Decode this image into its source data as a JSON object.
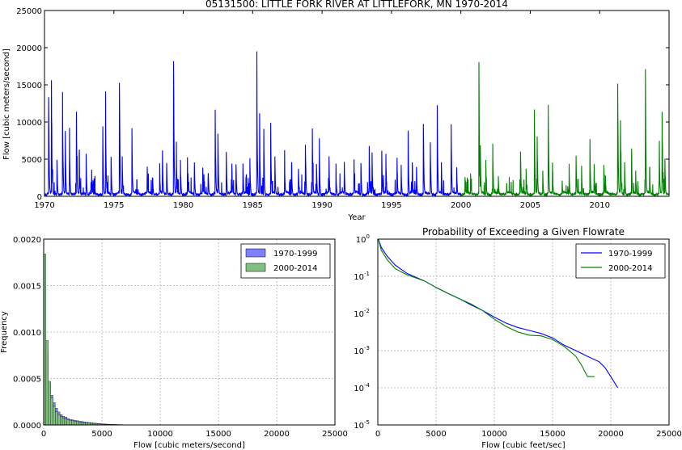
{
  "chart_data": [
    {
      "type": "line",
      "title": "05131500: LITTLE FORK RIVER AT LITTLEFORK, MN 1970-2014",
      "xlabel": "Year",
      "ylabel": "Flow [cubic meters/second]",
      "xlim": [
        1970,
        2015
      ],
      "ylim": [
        0,
        25000
      ],
      "xticks": [
        "1970",
        "1975",
        "1980",
        "1985",
        "1990",
        "1995",
        "2000",
        "2005",
        "2010"
      ],
      "yticks": [
        "0",
        "5000",
        "10000",
        "15000",
        "20000",
        "25000"
      ],
      "grid": false,
      "series": [
        {
          "name": "1970-1999",
          "color": "#0000ff",
          "peaks": [
            [
              1970.3,
              14800
            ],
            [
              1970.5,
              17200
            ],
            [
              1970.9,
              5000
            ],
            [
              1971.3,
              14800
            ],
            [
              1971.5,
              9000
            ],
            [
              1971.8,
              8500
            ],
            [
              1972.3,
              12400
            ],
            [
              1972.5,
              6400
            ],
            [
              1973.0,
              6000
            ],
            [
              1973.4,
              3800
            ],
            [
              1974.2,
              10100
            ],
            [
              1974.4,
              14400
            ],
            [
              1974.8,
              5500
            ],
            [
              1975.4,
              17300
            ],
            [
              1975.6,
              5800
            ],
            [
              1976.3,
              9300
            ],
            [
              1977.4,
              4600
            ],
            [
              1977.8,
              2500
            ],
            [
              1978.3,
              4500
            ],
            [
              1978.5,
              7100
            ],
            [
              1978.8,
              5200
            ],
            [
              1979.3,
              20500
            ],
            [
              1979.5,
              6500
            ],
            [
              1979.8,
              5000
            ],
            [
              1980.3,
              5400
            ],
            [
              1980.8,
              5000
            ],
            [
              1981.4,
              4500
            ],
            [
              1981.8,
              3500
            ],
            [
              1982.3,
              12500
            ],
            [
              1982.5,
              9000
            ],
            [
              1983.1,
              6200
            ],
            [
              1983.5,
              5000
            ],
            [
              1983.8,
              4800
            ],
            [
              1984.3,
              5100
            ],
            [
              1984.8,
              6000
            ],
            [
              1985.3,
              19600
            ],
            [
              1985.5,
              11200
            ],
            [
              1985.8,
              9800
            ],
            [
              1986.3,
              9800
            ],
            [
              1986.6,
              6000
            ],
            [
              1987.3,
              5000
            ],
            [
              1987.8,
              5300
            ],
            [
              1988.3,
              4200
            ],
            [
              1988.8,
              8000
            ],
            [
              1989.3,
              10000
            ],
            [
              1989.6,
              5000
            ],
            [
              1989.8,
              8000
            ],
            [
              1990.5,
              5400
            ],
            [
              1991.0,
              4400
            ],
            [
              1991.6,
              5000
            ],
            [
              1992.3,
              5500
            ],
            [
              1992.8,
              4800
            ],
            [
              1993.4,
              6500
            ],
            [
              1993.6,
              6600
            ],
            [
              1994.3,
              6500
            ],
            [
              1994.6,
              6200
            ],
            [
              1995.4,
              5300
            ],
            [
              1995.7,
              4300
            ],
            [
              1996.2,
              9600
            ],
            [
              1996.5,
              5000
            ],
            [
              1996.8,
              4600
            ],
            [
              1997.3,
              11300
            ],
            [
              1997.8,
              8500
            ],
            [
              1998.3,
              12800
            ],
            [
              1998.6,
              4600
            ],
            [
              1999.3,
              10700
            ],
            [
              1999.7,
              4200
            ]
          ]
        },
        {
          "name": "2000-2014",
          "color": "#008000",
          "peaks": [
            [
              2000.3,
              2800
            ],
            [
              2000.7,
              3500
            ],
            [
              2001.3,
              18600
            ],
            [
              2001.4,
              7700
            ],
            [
              2001.8,
              5000
            ],
            [
              2002.3,
              7500
            ],
            [
              2002.7,
              3000
            ],
            [
              2003.3,
              1800
            ],
            [
              2004.3,
              6500
            ],
            [
              2004.7,
              4000
            ],
            [
              2005.3,
              12600
            ],
            [
              2005.5,
              8500
            ],
            [
              2005.9,
              4000
            ],
            [
              2006.3,
              12500
            ],
            [
              2006.6,
              5000
            ],
            [
              2007.3,
              2300
            ],
            [
              2007.8,
              3800
            ],
            [
              2008.3,
              6000
            ],
            [
              2008.7,
              4300
            ],
            [
              2009.3,
              8200
            ],
            [
              2009.6,
              4500
            ],
            [
              2010.3,
              4500
            ],
            [
              2011.3,
              17400
            ],
            [
              2011.5,
              12000
            ],
            [
              2011.8,
              5200
            ],
            [
              2012.3,
              6500
            ],
            [
              2012.6,
              3500
            ],
            [
              2013.3,
              16700
            ],
            [
              2013.6,
              4500
            ],
            [
              2014.3,
              7500
            ],
            [
              2014.5,
              12000
            ],
            [
              2014.7,
              5400
            ]
          ]
        }
      ]
    },
    {
      "type": "bar",
      "title": "",
      "xlabel": "Flow [cubic meters/second]",
      "ylabel": "Frequency",
      "xlim": [
        0,
        25000
      ],
      "ylim": [
        0,
        0.002
      ],
      "xticks": [
        "0",
        "5000",
        "10000",
        "15000",
        "20000",
        "25000"
      ],
      "yticks": [
        "0.0000",
        "0.0005",
        "0.0010",
        "0.0015",
        "0.0020"
      ],
      "grid": true,
      "legend": "top-right",
      "bin_width": 200,
      "series": [
        {
          "name": "1970-1999",
          "color": "#8080ff",
          "values": [
            0.00148,
            0.00078,
            0.00045,
            0.00032,
            0.00024,
            0.00018,
            0.00014,
            0.00011,
            9.5e-05,
            8.5e-05,
            7e-05,
            6e-05,
            5.5e-05,
            5e-05,
            4.5e-05,
            4e-05,
            3.7e-05,
            3.4e-05,
            3e-05,
            2.7e-05,
            2.4e-05,
            2.1e-05,
            1.8e-05,
            1.6e-05,
            1.4e-05,
            1.2e-05,
            1e-05,
            9e-06,
            8e-06,
            7e-06,
            6e-06,
            5e-06,
            4e-06,
            4e-06,
            3e-06,
            3e-06
          ]
        },
        {
          "name": "2000-2014",
          "color": "#80c080",
          "values": [
            0.00184,
            0.00091,
            0.00047,
            0.00029,
            0.0002,
            0.00014,
            0.00011,
            9e-05,
            7.5e-05,
            6.5e-05,
            5.5e-05,
            5e-05,
            4.5e-05,
            4e-05,
            3.5e-05,
            3e-05,
            2.8e-05,
            2.5e-05,
            2.2e-05,
            2e-05,
            1.8e-05,
            1.5e-05,
            1.3e-05,
            1.1e-05,
            1e-05,
            8e-06,
            7e-06,
            6e-06,
            5e-06,
            4e-06
          ]
        }
      ]
    },
    {
      "type": "line",
      "title": "Probability of Exceeding a Given Flowrate",
      "xlabel": "Flow [cubic feet/sec]",
      "ylabel": "",
      "xlim": [
        0,
        25000
      ],
      "ylim": [
        1e-05,
        1
      ],
      "yscale": "log",
      "xticks": [
        "0",
        "5000",
        "10000",
        "15000",
        "20000",
        "25000"
      ],
      "ytick_exponents": [
        "0",
        "-1",
        "-2",
        "-3",
        "-4",
        "-5"
      ],
      "grid": true,
      "legend": "top-right",
      "series": [
        {
          "name": "1970-1999",
          "color": "#0000ff",
          "points": [
            [
              50,
              1
            ],
            [
              300,
              0.6
            ],
            [
              800,
              0.35
            ],
            [
              1500,
              0.2
            ],
            [
              2500,
              0.12
            ],
            [
              4000,
              0.075
            ],
            [
              5000,
              0.05
            ],
            [
              6000,
              0.035
            ],
            [
              7000,
              0.025
            ],
            [
              8000,
              0.017
            ],
            [
              9000,
              0.012
            ],
            [
              10000,
              0.008
            ],
            [
              11000,
              0.0055
            ],
            [
              12000,
              0.0042
            ],
            [
              13000,
              0.0035
            ],
            [
              14000,
              0.0029
            ],
            [
              15000,
              0.0022
            ],
            [
              16000,
              0.0014
            ],
            [
              17000,
              0.001
            ],
            [
              18000,
              0.0007
            ],
            [
              19000,
              0.0005
            ],
            [
              19500,
              0.00035
            ],
            [
              20000,
              0.0002
            ],
            [
              20600,
              0.0001
            ]
          ]
        },
        {
          "name": "2000-2014",
          "color": "#008000",
          "points": [
            [
              50,
              1
            ],
            [
              300,
              0.5
            ],
            [
              800,
              0.28
            ],
            [
              1500,
              0.16
            ],
            [
              2500,
              0.11
            ],
            [
              4000,
              0.075
            ],
            [
              5000,
              0.05
            ],
            [
              6000,
              0.035
            ],
            [
              7000,
              0.025
            ],
            [
              8000,
              0.018
            ],
            [
              9000,
              0.012
            ],
            [
              10000,
              0.007
            ],
            [
              11000,
              0.0045
            ],
            [
              12000,
              0.0032
            ],
            [
              13000,
              0.0026
            ],
            [
              14000,
              0.0025
            ],
            [
              15000,
              0.002
            ],
            [
              16000,
              0.0013
            ],
            [
              17000,
              0.0007
            ],
            [
              17500,
              0.0004
            ],
            [
              18000,
              0.0002
            ],
            [
              18600,
              0.0002
            ]
          ]
        }
      ]
    }
  ]
}
